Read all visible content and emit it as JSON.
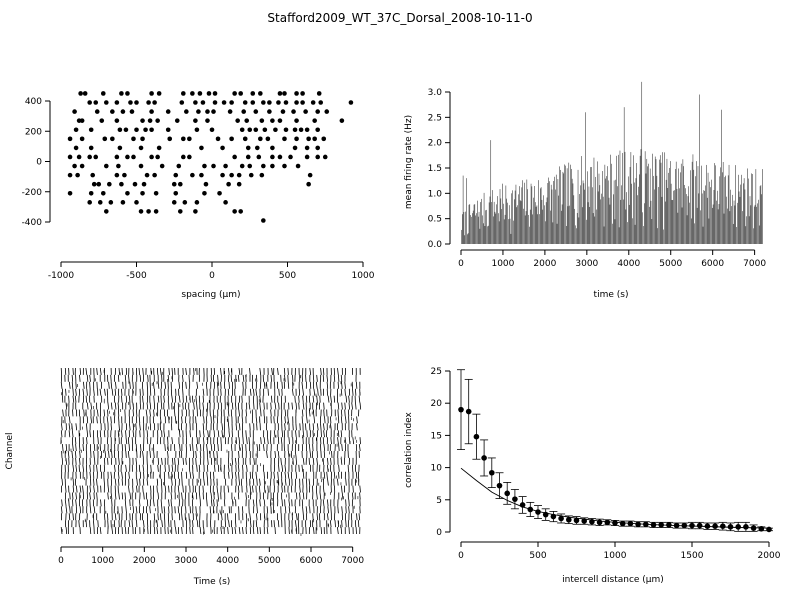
{
  "figure": {
    "title": "Stafford2009_WT_37C_Dorsal_2008-10-11-0"
  },
  "chart_data": [
    {
      "id": "layout",
      "type": "scatter",
      "title": "",
      "xlabel": "spacing (µm)",
      "ylabel": "",
      "xlim": [
        -1000,
        1000
      ],
      "ylim": [
        -400,
        450
      ],
      "xticks": [
        -1000,
        -500,
        0,
        500,
        1000
      ],
      "yticks": [
        -400,
        -200,
        0,
        200,
        400
      ],
      "grid": false,
      "legend": "none",
      "points": [
        [
          -870,
          450
        ],
        [
          -840,
          450
        ],
        [
          -720,
          450
        ],
        [
          -600,
          450
        ],
        [
          -560,
          450
        ],
        [
          -400,
          450
        ],
        [
          -350,
          450
        ],
        [
          -190,
          450
        ],
        [
          -130,
          450
        ],
        [
          -80,
          450
        ],
        [
          -20,
          450
        ],
        [
          20,
          450
        ],
        [
          150,
          450
        ],
        [
          190,
          450
        ],
        [
          270,
          450
        ],
        [
          320,
          450
        ],
        [
          450,
          450
        ],
        [
          480,
          450
        ],
        [
          560,
          450
        ],
        [
          600,
          450
        ],
        [
          710,
          450
        ],
        [
          -810,
          390
        ],
        [
          -770,
          390
        ],
        [
          -700,
          390
        ],
        [
          -630,
          390
        ],
        [
          -540,
          390
        ],
        [
          -500,
          390
        ],
        [
          -420,
          390
        ],
        [
          -380,
          390
        ],
        [
          -200,
          390
        ],
        [
          -110,
          390
        ],
        [
          -60,
          390
        ],
        [
          20,
          390
        ],
        [
          80,
          390
        ],
        [
          130,
          390
        ],
        [
          220,
          390
        ],
        [
          270,
          390
        ],
        [
          340,
          390
        ],
        [
          380,
          390
        ],
        [
          440,
          390
        ],
        [
          490,
          390
        ],
        [
          560,
          390
        ],
        [
          600,
          390
        ],
        [
          670,
          390
        ],
        [
          720,
          390
        ],
        [
          920,
          390
        ],
        [
          -910,
          330
        ],
        [
          -760,
          330
        ],
        [
          -660,
          330
        ],
        [
          -590,
          330
        ],
        [
          -530,
          330
        ],
        [
          -400,
          330
        ],
        [
          -290,
          330
        ],
        [
          -170,
          330
        ],
        [
          -90,
          330
        ],
        [
          -30,
          330
        ],
        [
          10,
          330
        ],
        [
          120,
          330
        ],
        [
          210,
          330
        ],
        [
          290,
          330
        ],
        [
          380,
          330
        ],
        [
          470,
          330
        ],
        [
          540,
          330
        ],
        [
          620,
          330
        ],
        [
          700,
          330
        ],
        [
          760,
          330
        ],
        [
          -880,
          270
        ],
        [
          -860,
          270
        ],
        [
          -730,
          270
        ],
        [
          -630,
          270
        ],
        [
          -460,
          270
        ],
        [
          -410,
          270
        ],
        [
          -360,
          270
        ],
        [
          -230,
          270
        ],
        [
          -110,
          270
        ],
        [
          -30,
          270
        ],
        [
          170,
          270
        ],
        [
          230,
          270
        ],
        [
          330,
          270
        ],
        [
          400,
          270
        ],
        [
          450,
          270
        ],
        [
          560,
          270
        ],
        [
          680,
          270
        ],
        [
          860,
          270
        ],
        [
          -900,
          210
        ],
        [
          -800,
          210
        ],
        [
          -610,
          210
        ],
        [
          -570,
          210
        ],
        [
          -500,
          210
        ],
        [
          -440,
          210
        ],
        [
          -400,
          210
        ],
        [
          -290,
          210
        ],
        [
          -100,
          210
        ],
        [
          0,
          210
        ],
        [
          200,
          210
        ],
        [
          250,
          210
        ],
        [
          290,
          210
        ],
        [
          350,
          210
        ],
        [
          420,
          210
        ],
        [
          490,
          210
        ],
        [
          550,
          210
        ],
        [
          590,
          210
        ],
        [
          630,
          210
        ],
        [
          700,
          210
        ],
        [
          -940,
          150
        ],
        [
          -860,
          150
        ],
        [
          -710,
          150
        ],
        [
          -660,
          150
        ],
        [
          -520,
          150
        ],
        [
          -460,
          150
        ],
        [
          -280,
          150
        ],
        [
          -190,
          150
        ],
        [
          -150,
          150
        ],
        [
          40,
          150
        ],
        [
          130,
          150
        ],
        [
          220,
          150
        ],
        [
          320,
          150
        ],
        [
          370,
          150
        ],
        [
          480,
          150
        ],
        [
          560,
          150
        ],
        [
          640,
          150
        ],
        [
          680,
          150
        ],
        [
          740,
          150
        ],
        [
          -900,
          90
        ],
        [
          -800,
          90
        ],
        [
          -610,
          90
        ],
        [
          -470,
          90
        ],
        [
          -350,
          90
        ],
        [
          -70,
          90
        ],
        [
          70,
          90
        ],
        [
          240,
          90
        ],
        [
          300,
          90
        ],
        [
          400,
          90
        ],
        [
          550,
          90
        ],
        [
          630,
          90
        ],
        [
          700,
          90
        ],
        [
          -940,
          30
        ],
        [
          -880,
          30
        ],
        [
          -810,
          30
        ],
        [
          -770,
          30
        ],
        [
          -630,
          30
        ],
        [
          -560,
          30
        ],
        [
          -520,
          30
        ],
        [
          -400,
          30
        ],
        [
          -360,
          30
        ],
        [
          -190,
          30
        ],
        [
          -150,
          30
        ],
        [
          150,
          30
        ],
        [
          240,
          30
        ],
        [
          310,
          30
        ],
        [
          400,
          30
        ],
        [
          450,
          30
        ],
        [
          520,
          30
        ],
        [
          630,
          30
        ],
        [
          700,
          30
        ],
        [
          750,
          30
        ],
        [
          -910,
          -30
        ],
        [
          -860,
          -30
        ],
        [
          -700,
          -30
        ],
        [
          -620,
          -30
        ],
        [
          -470,
          -30
        ],
        [
          -330,
          -30
        ],
        [
          -220,
          -30
        ],
        [
          -50,
          -30
        ],
        [
          10,
          -30
        ],
        [
          90,
          -30
        ],
        [
          200,
          -30
        ],
        [
          250,
          -30
        ],
        [
          340,
          -30
        ],
        [
          400,
          -30
        ],
        [
          480,
          -30
        ],
        [
          570,
          -30
        ],
        [
          -940,
          -90
        ],
        [
          -890,
          -90
        ],
        [
          -790,
          -90
        ],
        [
          -630,
          -90
        ],
        [
          -580,
          -90
        ],
        [
          -430,
          -90
        ],
        [
          -380,
          -90
        ],
        [
          -240,
          -90
        ],
        [
          -130,
          -90
        ],
        [
          -70,
          -90
        ],
        [
          70,
          -90
        ],
        [
          130,
          -90
        ],
        [
          180,
          -90
        ],
        [
          260,
          -90
        ],
        [
          330,
          -90
        ],
        [
          650,
          -90
        ],
        [
          -780,
          -150
        ],
        [
          -750,
          -150
        ],
        [
          -680,
          -150
        ],
        [
          -600,
          -150
        ],
        [
          -510,
          -150
        ],
        [
          -450,
          -150
        ],
        [
          -250,
          -150
        ],
        [
          -210,
          -150
        ],
        [
          -40,
          -150
        ],
        [
          110,
          -150
        ],
        [
          180,
          -150
        ],
        [
          640,
          -150
        ],
        [
          -940,
          -210
        ],
        [
          -800,
          -210
        ],
        [
          -720,
          -210
        ],
        [
          -560,
          -210
        ],
        [
          -460,
          -210
        ],
        [
          -370,
          -210
        ],
        [
          -240,
          -210
        ],
        [
          -50,
          -210
        ],
        [
          50,
          -210
        ],
        [
          -810,
          -270
        ],
        [
          -740,
          -270
        ],
        [
          -670,
          -270
        ],
        [
          -590,
          -270
        ],
        [
          -500,
          -270
        ],
        [
          -250,
          -270
        ],
        [
          -180,
          -270
        ],
        [
          -100,
          -270
        ],
        [
          90,
          -270
        ],
        [
          -700,
          -330
        ],
        [
          -470,
          -330
        ],
        [
          -420,
          -330
        ],
        [
          -370,
          -330
        ],
        [
          -210,
          -330
        ],
        [
          -110,
          -330
        ],
        [
          150,
          -330
        ],
        [
          190,
          -330
        ],
        [
          340,
          -390
        ]
      ]
    },
    {
      "id": "firing-rate",
      "type": "bar",
      "title": "",
      "xlabel": "time (s)",
      "ylabel": "mean firing rate (Hz)",
      "xlim": [
        0,
        7200
      ],
      "ylim": [
        0,
        3.2
      ],
      "xticks": [
        0,
        1000,
        2000,
        3000,
        4000,
        5000,
        6000,
        7000
      ],
      "yticks": [
        0.0,
        0.5,
        1.0,
        1.5,
        2.0,
        2.5,
        3.0
      ],
      "ytick_labels": [
        "0.0",
        "0.5",
        "1.0",
        "1.5",
        "2.0",
        "2.5",
        "3.0"
      ],
      "grid": false,
      "legend": "none",
      "bin_width_s": 20,
      "envelope": [
        [
          0,
          0.6
        ],
        [
          300,
          0.9
        ],
        [
          700,
          1.1
        ],
        [
          1000,
          1.2
        ],
        [
          1500,
          1.3
        ],
        [
          2000,
          1.4
        ],
        [
          2500,
          1.6
        ],
        [
          3000,
          1.8
        ],
        [
          3500,
          1.8
        ],
        [
          4000,
          1.9
        ],
        [
          4500,
          1.9
        ],
        [
          5000,
          1.8
        ],
        [
          5500,
          1.8
        ],
        [
          6000,
          1.7
        ],
        [
          6500,
          1.6
        ],
        [
          7200,
          1.5
        ]
      ],
      "peaks": [
        [
          40,
          1.35
        ],
        [
          120,
          1.3
        ],
        [
          700,
          2.05
        ],
        [
          2290,
          2.35
        ],
        [
          2960,
          2.6
        ],
        [
          3290,
          2.75
        ],
        [
          3670,
          2.85
        ],
        [
          3880,
          2.7
        ],
        [
          4300,
          3.2
        ],
        [
          4430,
          2.9
        ],
        [
          4750,
          2.85
        ],
        [
          5270,
          2.8
        ],
        [
          5680,
          2.95
        ],
        [
          6200,
          2.65
        ],
        [
          6530,
          2.5
        ],
        [
          7050,
          2.1
        ],
        [
          7150,
          2.0
        ]
      ]
    },
    {
      "id": "raster",
      "type": "scatter",
      "title": "",
      "xlabel": "Time (s)",
      "ylabel": "Channel",
      "xlim": [
        0,
        7200
      ],
      "xticks": [
        0,
        1000,
        2000,
        3000,
        4000,
        5000,
        6000,
        7000
      ],
      "grid": false,
      "legend": "none",
      "burst_interval_s": 85
    },
    {
      "id": "correlation",
      "type": "scatter",
      "title": "",
      "xlabel": "intercell distance (µm)",
      "ylabel": "correlation index",
      "xlim": [
        0,
        2000
      ],
      "ylim": [
        0,
        25
      ],
      "xticks": [
        0,
        500,
        1000,
        1500,
        2000
      ],
      "yticks": [
        0,
        5,
        10,
        15,
        20,
        25
      ],
      "grid": false,
      "legend": "none",
      "points": [
        {
          "x": 0,
          "y": 19.0,
          "err": 6.2
        },
        {
          "x": 50,
          "y": 18.7,
          "err": 5.0
        },
        {
          "x": 100,
          "y": 14.8,
          "err": 3.5
        },
        {
          "x": 150,
          "y": 11.5,
          "err": 2.8
        },
        {
          "x": 200,
          "y": 9.2,
          "err": 2.3
        },
        {
          "x": 250,
          "y": 7.2,
          "err": 2.0
        },
        {
          "x": 300,
          "y": 6.0,
          "err": 1.7
        },
        {
          "x": 350,
          "y": 5.1,
          "err": 1.5
        },
        {
          "x": 400,
          "y": 4.2,
          "err": 1.3
        },
        {
          "x": 450,
          "y": 3.5,
          "err": 1.1
        },
        {
          "x": 500,
          "y": 3.1,
          "err": 1.0
        },
        {
          "x": 550,
          "y": 2.7,
          "err": 0.9
        },
        {
          "x": 600,
          "y": 2.4,
          "err": 0.8
        },
        {
          "x": 650,
          "y": 2.1,
          "err": 0.7
        },
        {
          "x": 700,
          "y": 1.9,
          "err": 0.6
        },
        {
          "x": 750,
          "y": 1.8,
          "err": 0.6
        },
        {
          "x": 800,
          "y": 1.7,
          "err": 0.5
        },
        {
          "x": 850,
          "y": 1.6,
          "err": 0.5
        },
        {
          "x": 900,
          "y": 1.5,
          "err": 0.5
        },
        {
          "x": 950,
          "y": 1.5,
          "err": 0.4
        },
        {
          "x": 1000,
          "y": 1.4,
          "err": 0.4
        },
        {
          "x": 1050,
          "y": 1.3,
          "err": 0.4
        },
        {
          "x": 1100,
          "y": 1.3,
          "err": 0.4
        },
        {
          "x": 1150,
          "y": 1.2,
          "err": 0.4
        },
        {
          "x": 1200,
          "y": 1.2,
          "err": 0.4
        },
        {
          "x": 1250,
          "y": 1.1,
          "err": 0.4
        },
        {
          "x": 1300,
          "y": 1.1,
          "err": 0.4
        },
        {
          "x": 1350,
          "y": 1.1,
          "err": 0.4
        },
        {
          "x": 1400,
          "y": 1.0,
          "err": 0.4
        },
        {
          "x": 1450,
          "y": 1.0,
          "err": 0.4
        },
        {
          "x": 1500,
          "y": 1.0,
          "err": 0.5
        },
        {
          "x": 1550,
          "y": 1.0,
          "err": 0.5
        },
        {
          "x": 1600,
          "y": 0.9,
          "err": 0.5
        },
        {
          "x": 1650,
          "y": 0.9,
          "err": 0.5
        },
        {
          "x": 1700,
          "y": 0.9,
          "err": 0.6
        },
        {
          "x": 1750,
          "y": 0.8,
          "err": 0.6
        },
        {
          "x": 1800,
          "y": 0.8,
          "err": 0.7
        },
        {
          "x": 1850,
          "y": 0.8,
          "err": 0.7
        },
        {
          "x": 1900,
          "y": 0.6,
          "err": 0.5
        },
        {
          "x": 1950,
          "y": 0.5,
          "err": 0.3
        },
        {
          "x": 2000,
          "y": 0.4,
          "err": 0.2
        }
      ],
      "fit_curve": [
        [
          0,
          9.9
        ],
        [
          100,
          8.0
        ],
        [
          200,
          6.2
        ],
        [
          300,
          4.9
        ],
        [
          400,
          3.9
        ],
        [
          500,
          3.2
        ],
        [
          600,
          2.7
        ],
        [
          700,
          2.3
        ],
        [
          800,
          2.0
        ],
        [
          900,
          1.7
        ],
        [
          1000,
          1.5
        ],
        [
          1200,
          1.2
        ],
        [
          1400,
          1.0
        ],
        [
          1600,
          0.85
        ],
        [
          1800,
          0.7
        ],
        [
          2000,
          0.6
        ]
      ]
    }
  ]
}
